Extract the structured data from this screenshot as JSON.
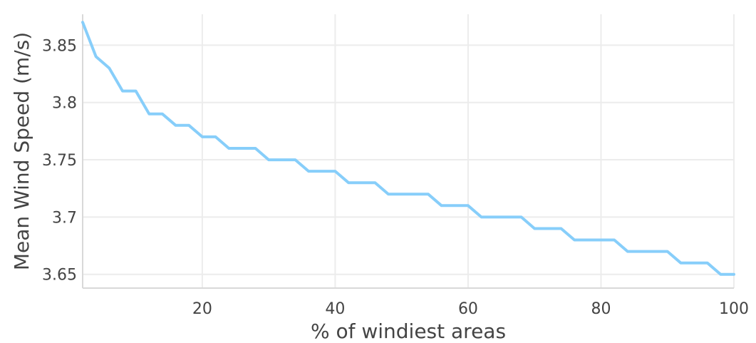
{
  "chart_data": {
    "type": "line",
    "xlabel": "% of windiest areas",
    "ylabel": "Mean Wind Speed (m/s)",
    "xlim": [
      2,
      100
    ],
    "ylim": [
      3.638,
      3.877
    ],
    "x_ticks": [
      20,
      40,
      60,
      80,
      100
    ],
    "x_tick_labels": [
      "20",
      "40",
      "60",
      "80",
      "100"
    ],
    "y_ticks": [
      3.65,
      3.7,
      3.75,
      3.8,
      3.85
    ],
    "y_tick_labels": [
      "3.65",
      "3.7",
      "3.75",
      "3.8",
      "3.85"
    ],
    "grid": true,
    "colors": {
      "series": "#87cefa",
      "grid": "#ececec",
      "axis": "#d9d9d9",
      "text": "#444444"
    },
    "series": [
      {
        "x": [
          2,
          4,
          6,
          8,
          10,
          12,
          14,
          16,
          18,
          20,
          22,
          24,
          26,
          28,
          30,
          32,
          34,
          36,
          38,
          40,
          42,
          44,
          46,
          48,
          50,
          52,
          54,
          56,
          58,
          60,
          62,
          64,
          66,
          68,
          70,
          72,
          74,
          76,
          78,
          80,
          82,
          84,
          86,
          88,
          90,
          92,
          94,
          96,
          98,
          100
        ],
        "values": [
          3.87,
          3.84,
          3.83,
          3.81,
          3.81,
          3.79,
          3.79,
          3.78,
          3.78,
          3.77,
          3.77,
          3.76,
          3.76,
          3.76,
          3.75,
          3.75,
          3.75,
          3.74,
          3.74,
          3.74,
          3.73,
          3.73,
          3.73,
          3.72,
          3.72,
          3.72,
          3.72,
          3.71,
          3.71,
          3.71,
          3.7,
          3.7,
          3.7,
          3.7,
          3.69,
          3.69,
          3.69,
          3.68,
          3.68,
          3.68,
          3.68,
          3.67,
          3.67,
          3.67,
          3.67,
          3.66,
          3.66,
          3.66,
          3.65,
          3.65
        ]
      }
    ]
  }
}
